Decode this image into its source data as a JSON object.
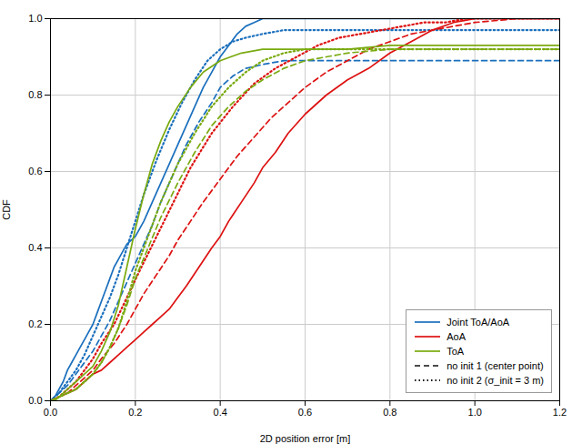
{
  "chart_data": {
    "type": "line",
    "xlabel": "2D position error [m]",
    "ylabel": "CDF",
    "xlim": [
      0,
      1.2
    ],
    "ylim": [
      0,
      1.0
    ],
    "xticks": [
      {
        "value": 0,
        "label": "0.0"
      },
      0.2,
      0.4,
      0.6,
      0.8,
      {
        "value": 1.0,
        "label": "1.0"
      },
      1.2
    ],
    "yticks": [
      {
        "value": 0,
        "label": "0.0"
      },
      0.2,
      0.4,
      0.6,
      0.8,
      {
        "value": 1.0,
        "label": "1.0"
      }
    ],
    "grid": true,
    "legend": "lower right",
    "line_styles": [
      {
        "name": "no init 1 (center point)",
        "line_style": "dashed",
        "color": "#111111"
      },
      {
        "name": "no init 2 (σ_init = 3 m)",
        "line_style": "dotted",
        "color": "#111111"
      }
    ],
    "series": [
      {
        "name": "Joint ToA/AoA",
        "color": "#1a6fbd",
        "line_style": "dotted",
        "x": [
          0,
          0.02,
          0.04,
          0.06,
          0.08,
          0.1,
          0.12,
          0.14,
          0.16,
          0.18,
          0.2,
          0.22,
          0.25,
          0.28,
          0.31,
          0.34,
          0.37,
          0.4,
          0.43,
          0.46,
          0.5,
          0.55,
          0.6,
          0.7,
          0.8,
          1.2
        ],
        "values": [
          0,
          0.02,
          0.05,
          0.08,
          0.12,
          0.17,
          0.22,
          0.27,
          0.33,
          0.4,
          0.47,
          0.54,
          0.63,
          0.71,
          0.78,
          0.84,
          0.89,
          0.92,
          0.94,
          0.95,
          0.96,
          0.97,
          0.97,
          0.97,
          0.97,
          0.97
        ]
      },
      {
        "name": "Joint ToA/AoA",
        "color": "#1a6fbd",
        "line_style": "dashed",
        "x": [
          0,
          0.02,
          0.04,
          0.06,
          0.08,
          0.1,
          0.12,
          0.14,
          0.16,
          0.18,
          0.2,
          0.22,
          0.24,
          0.26,
          0.28,
          0.3,
          0.32,
          0.35,
          0.38,
          0.4,
          0.43,
          0.46,
          0.5,
          0.55,
          0.6,
          0.7,
          0.8,
          1.2
        ],
        "values": [
          0,
          0.02,
          0.04,
          0.07,
          0.1,
          0.13,
          0.17,
          0.21,
          0.26,
          0.31,
          0.36,
          0.41,
          0.46,
          0.52,
          0.57,
          0.62,
          0.67,
          0.73,
          0.78,
          0.82,
          0.85,
          0.87,
          0.88,
          0.89,
          0.89,
          0.89,
          0.89,
          0.89
        ]
      },
      {
        "name": "Joint ToA/AoA",
        "color": "#1a6fbd",
        "line_style": "solid",
        "x": [
          0,
          0.01,
          0.02,
          0.03,
          0.04,
          0.05,
          0.06,
          0.07,
          0.08,
          0.09,
          0.1,
          0.11,
          0.12,
          0.13,
          0.14,
          0.15,
          0.16,
          0.17,
          0.18,
          0.19,
          0.2,
          0.22,
          0.24,
          0.26,
          0.28,
          0.3,
          0.32,
          0.34,
          0.36,
          0.38,
          0.4,
          0.42,
          0.44,
          0.46,
          0.48,
          0.5,
          0.52,
          0.54,
          0.56,
          0.6,
          1.2
        ],
        "values": [
          0,
          0.01,
          0.03,
          0.05,
          0.08,
          0.1,
          0.12,
          0.14,
          0.16,
          0.18,
          0.2,
          0.23,
          0.26,
          0.29,
          0.32,
          0.35,
          0.37,
          0.39,
          0.41,
          0.42,
          0.43,
          0.47,
          0.52,
          0.57,
          0.62,
          0.67,
          0.72,
          0.77,
          0.82,
          0.86,
          0.9,
          0.93,
          0.96,
          0.98,
          0.99,
          1.0,
          1.0,
          1.0,
          1.0,
          1.0,
          1.0
        ]
      },
      {
        "name": "AoA",
        "color": "#dd1111",
        "line_style": "dotted",
        "x": [
          0,
          0.02,
          0.04,
          0.06,
          0.08,
          0.1,
          0.12,
          0.15,
          0.18,
          0.21,
          0.25,
          0.29,
          0.33,
          0.38,
          0.43,
          0.48,
          0.53,
          0.58,
          0.63,
          0.68,
          0.73,
          0.78,
          0.83,
          0.88,
          0.93,
          0.98,
          1.03,
          1.1,
          1.2
        ],
        "values": [
          0,
          0.01,
          0.03,
          0.05,
          0.08,
          0.11,
          0.15,
          0.2,
          0.27,
          0.34,
          0.43,
          0.52,
          0.61,
          0.7,
          0.77,
          0.83,
          0.87,
          0.9,
          0.93,
          0.95,
          0.96,
          0.97,
          0.98,
          0.99,
          0.99,
          1.0,
          1.0,
          1.0,
          1.0
        ]
      },
      {
        "name": "AoA",
        "color": "#dd1111",
        "line_style": "dashed",
        "x": [
          0,
          0.02,
          0.04,
          0.06,
          0.08,
          0.1,
          0.12,
          0.15,
          0.18,
          0.2,
          0.22,
          0.25,
          0.28,
          0.3,
          0.33,
          0.36,
          0.4,
          0.44,
          0.48,
          0.52,
          0.56,
          0.6,
          0.65,
          0.7,
          0.75,
          0.8,
          0.85,
          0.9,
          0.95,
          1.0,
          1.1,
          1.2
        ],
        "values": [
          0,
          0.01,
          0.02,
          0.04,
          0.06,
          0.08,
          0.11,
          0.15,
          0.2,
          0.24,
          0.28,
          0.33,
          0.38,
          0.42,
          0.47,
          0.52,
          0.58,
          0.64,
          0.69,
          0.74,
          0.78,
          0.82,
          0.86,
          0.89,
          0.92,
          0.94,
          0.96,
          0.97,
          0.98,
          0.99,
          1.0,
          1.0
        ]
      },
      {
        "name": "AoA",
        "color": "#dd1111",
        "line_style": "solid",
        "x": [
          0,
          0.02,
          0.04,
          0.06,
          0.08,
          0.1,
          0.12,
          0.14,
          0.16,
          0.18,
          0.2,
          0.22,
          0.24,
          0.26,
          0.28,
          0.3,
          0.32,
          0.35,
          0.38,
          0.4,
          0.42,
          0.45,
          0.48,
          0.5,
          0.53,
          0.56,
          0.6,
          0.65,
          0.7,
          0.75,
          0.8,
          0.85,
          0.9,
          0.95,
          1.0,
          1.05,
          1.1,
          1.2
        ],
        "values": [
          0,
          0.01,
          0.02,
          0.03,
          0.05,
          0.07,
          0.08,
          0.1,
          0.12,
          0.14,
          0.16,
          0.18,
          0.2,
          0.22,
          0.24,
          0.27,
          0.3,
          0.35,
          0.4,
          0.43,
          0.47,
          0.52,
          0.57,
          0.61,
          0.65,
          0.7,
          0.75,
          0.8,
          0.84,
          0.87,
          0.91,
          0.94,
          0.97,
          0.99,
          1.0,
          1.0,
          1.0,
          1.0
        ]
      },
      {
        "name": "ToA",
        "color": "#7aaa10",
        "line_style": "dotted",
        "x": [
          0,
          0.02,
          0.04,
          0.06,
          0.08,
          0.1,
          0.12,
          0.14,
          0.16,
          0.18,
          0.2,
          0.23,
          0.26,
          0.3,
          0.34,
          0.38,
          0.42,
          0.46,
          0.5,
          0.55,
          0.6,
          0.65,
          0.7,
          0.8,
          1.2
        ],
        "values": [
          0,
          0.01,
          0.02,
          0.03,
          0.05,
          0.07,
          0.1,
          0.14,
          0.19,
          0.26,
          0.34,
          0.43,
          0.52,
          0.62,
          0.7,
          0.77,
          0.82,
          0.86,
          0.89,
          0.91,
          0.92,
          0.92,
          0.92,
          0.92,
          0.92
        ]
      },
      {
        "name": "ToA",
        "color": "#7aaa10",
        "line_style": "dashed",
        "x": [
          0,
          0.02,
          0.04,
          0.06,
          0.08,
          0.1,
          0.12,
          0.14,
          0.16,
          0.18,
          0.2,
          0.23,
          0.26,
          0.3,
          0.34,
          0.38,
          0.42,
          0.46,
          0.5,
          0.55,
          0.6,
          0.65,
          0.7,
          0.8,
          1.2
        ],
        "values": [
          0,
          0.01,
          0.02,
          0.03,
          0.05,
          0.07,
          0.1,
          0.14,
          0.19,
          0.25,
          0.32,
          0.4,
          0.48,
          0.57,
          0.65,
          0.72,
          0.77,
          0.81,
          0.84,
          0.87,
          0.89,
          0.9,
          0.91,
          0.92,
          0.92
        ]
      },
      {
        "name": "ToA",
        "color": "#7aaa10",
        "line_style": "solid",
        "x": [
          0,
          0.01,
          0.02,
          0.03,
          0.04,
          0.05,
          0.06,
          0.07,
          0.08,
          0.09,
          0.1,
          0.12,
          0.14,
          0.16,
          0.18,
          0.2,
          0.22,
          0.24,
          0.26,
          0.28,
          0.3,
          0.33,
          0.36,
          0.4,
          0.45,
          0.5,
          0.55,
          0.6,
          0.65,
          0.7,
          0.8,
          1.2
        ],
        "values": [
          0,
          0.0,
          0.01,
          0.02,
          0.03,
          0.04,
          0.05,
          0.06,
          0.07,
          0.08,
          0.09,
          0.13,
          0.18,
          0.25,
          0.35,
          0.45,
          0.54,
          0.62,
          0.68,
          0.73,
          0.77,
          0.82,
          0.86,
          0.89,
          0.91,
          0.92,
          0.92,
          0.92,
          0.92,
          0.92,
          0.93,
          0.93
        ]
      }
    ]
  }
}
